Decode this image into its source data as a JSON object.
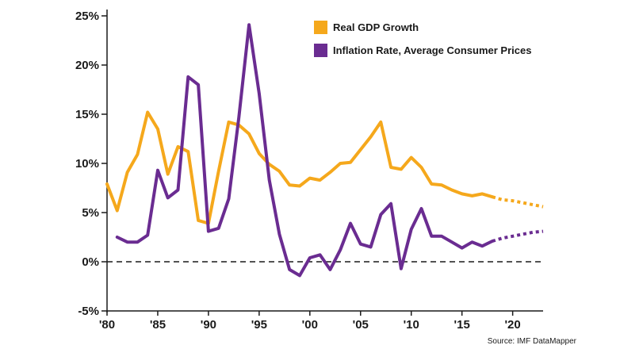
{
  "chart_data": {
    "type": "line",
    "xlim": [
      1980,
      2023
    ],
    "ylim": [
      -5,
      25
    ],
    "y_ticks": [
      -5,
      0,
      5,
      10,
      15,
      20,
      25
    ],
    "y_tick_labels": [
      "-5%",
      "0%",
      "5%",
      "10%",
      "15%",
      "20%",
      "25%"
    ],
    "x_ticks": [
      1980,
      1985,
      1990,
      1995,
      2000,
      2005,
      2010,
      2015,
      2020
    ],
    "x_tick_labels": [
      "'80",
      "'85",
      "'90",
      "'95",
      "'00",
      "'05",
      "'10",
      "'15",
      "'20"
    ],
    "zero_line": "dashed",
    "grid": false,
    "legend_position": "top-right",
    "series": [
      {
        "name": "Real GDP Growth",
        "color": "#f5a81c",
        "x": [
          1980,
          1981,
          1982,
          1983,
          1984,
          1985,
          1986,
          1987,
          1988,
          1989,
          1990,
          1991,
          1992,
          1993,
          1994,
          1995,
          1996,
          1997,
          1998,
          1999,
          2000,
          2001,
          2002,
          2003,
          2004,
          2005,
          2006,
          2007,
          2008,
          2009,
          2010,
          2011,
          2012,
          2013,
          2014,
          2015,
          2016,
          2017,
          2018
        ],
        "values": [
          7.9,
          5.2,
          9.1,
          10.9,
          15.2,
          13.5,
          8.9,
          11.7,
          11.2,
          4.2,
          3.9,
          9.2,
          14.2,
          13.9,
          13.0,
          11.0,
          9.9,
          9.2,
          7.8,
          7.7,
          8.5,
          8.3,
          9.1,
          10.0,
          10.1,
          11.4,
          12.7,
          14.2,
          9.6,
          9.4,
          10.6,
          9.6,
          7.9,
          7.8,
          7.3,
          6.9,
          6.7,
          6.9,
          6.6
        ],
        "projection_x": [
          2018,
          2019,
          2020,
          2021,
          2022,
          2023
        ],
        "projection_values": [
          6.6,
          6.3,
          6.2,
          6.0,
          5.8,
          5.6
        ]
      },
      {
        "name": "Inflation Rate, Average Consumer Prices",
        "color": "#6a2c91",
        "x": [
          1981,
          1982,
          1983,
          1984,
          1985,
          1986,
          1987,
          1988,
          1989,
          1990,
          1991,
          1992,
          1993,
          1994,
          1995,
          1996,
          1997,
          1998,
          1999,
          2000,
          2001,
          2002,
          2003,
          2004,
          2005,
          2006,
          2007,
          2008,
          2009,
          2010,
          2011,
          2012,
          2013,
          2014,
          2015,
          2016,
          2017,
          2018
        ],
        "values": [
          2.5,
          2.0,
          2.0,
          2.7,
          9.3,
          6.5,
          7.3,
          18.8,
          18.0,
          3.1,
          3.4,
          6.4,
          14.7,
          24.1,
          17.1,
          8.3,
          2.8,
          -0.8,
          -1.4,
          0.4,
          0.7,
          -0.8,
          1.2,
          3.9,
          1.8,
          1.5,
          4.8,
          5.9,
          -0.7,
          3.3,
          5.4,
          2.6,
          2.6,
          2.0,
          1.4,
          2.0,
          1.6,
          2.1
        ],
        "projection_x": [
          2018,
          2019,
          2020,
          2021,
          2022,
          2023
        ],
        "projection_values": [
          2.1,
          2.4,
          2.6,
          2.8,
          3.0,
          3.1
        ]
      }
    ],
    "source": "Source: IMF DataMapper"
  }
}
